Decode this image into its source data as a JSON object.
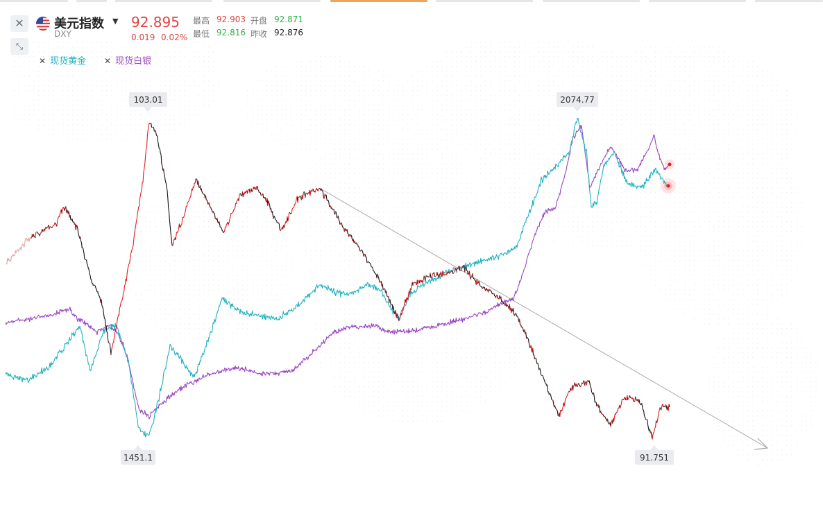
{
  "header": {
    "symbol_name": "美元指数",
    "symbol_code": "DXY",
    "price": "92.895",
    "change": "0.019",
    "change_pct": "0.02%",
    "high_label": "最高",
    "high_value": "92.903",
    "open_label": "开盘",
    "open_value": "92.871",
    "low_label": "最低",
    "low_value": "92.816",
    "prev_close_label": "昨收",
    "prev_close_value": "92.876"
  },
  "legend": {
    "items": [
      {
        "label": "现货黄金",
        "color": "#1fb2c1"
      },
      {
        "label": "现货白银",
        "color": "#a04fc0"
      }
    ]
  },
  "colors": {
    "dxy_up": "#e01e1e",
    "dxy_down": "#111111",
    "gold": "#1fb2c1",
    "silver": "#9a46c4",
    "trendline": "#a8a8a8"
  },
  "chart_data": {
    "type": "line",
    "series": [
      {
        "name": "DXY",
        "annotations": {
          "max": "103.01",
          "min": "91.751"
        }
      },
      {
        "name": "现货黄金",
        "annotations": {
          "max": "2074.77",
          "min": "1451.1"
        }
      },
      {
        "name": "现货白银"
      }
    ],
    "annotations": [
      "103.01",
      "2074.77",
      "1451.1",
      "91.751"
    ],
    "grid": false,
    "legend_position": "top-left"
  }
}
